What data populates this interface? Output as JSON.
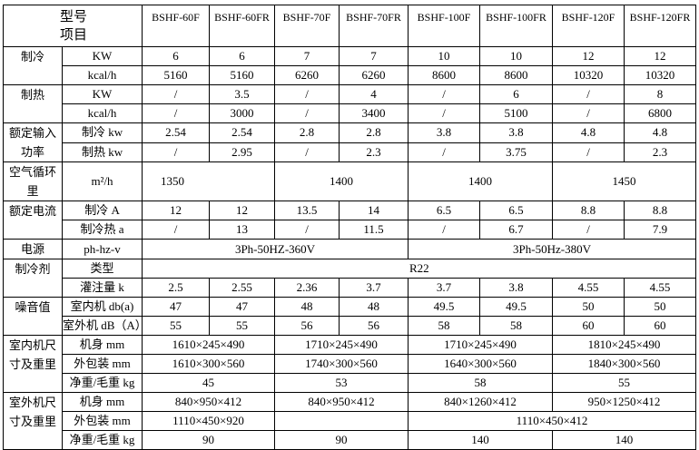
{
  "header": {
    "corner": "型号\n项目",
    "models": [
      "BSHF-60F",
      "BSHF-60FR",
      "BSHF-70F",
      "BSHF-70FR",
      "BSHF-100F",
      "BSHF-100FR",
      "BSHF-120F",
      "BSHF-120FR"
    ]
  },
  "rows": [
    {
      "group": "制冷",
      "unit": "KW",
      "values": [
        "6",
        "6",
        "7",
        "7",
        "10",
        "10",
        "12",
        "12"
      ]
    },
    {
      "unit": "kcal/h",
      "values": [
        "5160",
        "5160",
        "6260",
        "6260",
        "8600",
        "8600",
        "10320",
        "10320"
      ]
    },
    {
      "group": "制热",
      "unit": "KW",
      "values": [
        "/",
        "3.5",
        "/",
        "4",
        "/",
        "6",
        "/",
        "8"
      ]
    },
    {
      "unit": "kcal/h",
      "values": [
        "/",
        "3000",
        "/",
        "3400",
        "/",
        "5100",
        "/",
        "6800"
      ]
    },
    {
      "group": "额定输入\n功率",
      "unit": "制冷 kw",
      "values": [
        "2.54",
        "2.54",
        "2.8",
        "2.8",
        "3.8",
        "3.8",
        "4.8",
        "4.8"
      ]
    },
    {
      "unit": "制热 kw",
      "values": [
        "/",
        "2.95",
        "/",
        "2.3",
        "/",
        "3.75",
        "/",
        "2.3"
      ]
    },
    {
      "group": "空气循环里",
      "unit": "m²/h",
      "values": [
        "1350",
        "1400",
        "1400",
        "1450"
      ]
    },
    {
      "group": "额定电流",
      "unit": "制冷 A",
      "values": [
        "12",
        "12",
        "13.5",
        "14",
        "6.5",
        "6.5",
        "8.8",
        "8.8"
      ]
    },
    {
      "unit": "制冷热 a",
      "values": [
        "/",
        "13",
        "/",
        "11.5",
        "/",
        "6.7",
        "/",
        "7.9"
      ]
    },
    {
      "group": "电源",
      "unit": "ph-hz-v",
      "values": [
        "3Ph-50HZ-360V",
        "3Ph-50Hz-380V"
      ]
    },
    {
      "group": "制冷剂",
      "unit": "类型",
      "values": [
        "R22"
      ]
    },
    {
      "unit": "灌注量 k",
      "values": [
        "2.5",
        "2.55",
        "2.36",
        "3.7",
        "3.7",
        "3.8",
        "4.55",
        "4.55"
      ]
    },
    {
      "group": "噪音值",
      "unit": "室内机 db(a)",
      "values": [
        "47",
        "47",
        "48",
        "48",
        "49.5",
        "49.5",
        "50",
        "50"
      ]
    },
    {
      "unit": "室外机 dB（A）",
      "values": [
        "55",
        "55",
        "56",
        "56",
        "58",
        "58",
        "60",
        "60"
      ]
    },
    {
      "group": "室内机尺\n寸及重里",
      "unit": "机身 mm",
      "values": [
        "1610×245×490",
        "1710×245×490",
        "1710×245×490",
        "1810×245×490"
      ]
    },
    {
      "unit": "外包装 mm",
      "values": [
        "1610×300×560",
        "1740×300×560",
        "1640×300×560",
        "1840×300×560"
      ]
    },
    {
      "unit": "净重/毛重 kg",
      "values": [
        "45",
        "53",
        "58",
        "55"
      ]
    },
    {
      "group": "室外机尺\n寸及重里",
      "unit": "机身 mm",
      "values": [
        "840×950×412",
        "840×950×412",
        "840×1260×412",
        "950×1250×412"
      ]
    },
    {
      "unit": "外包装 mm",
      "values": [
        "1110×450×920",
        "",
        "1110×450×412"
      ]
    },
    {
      "unit": "净重/毛重 kg",
      "values": [
        "90",
        "90",
        "140",
        "140"
      ]
    }
  ]
}
